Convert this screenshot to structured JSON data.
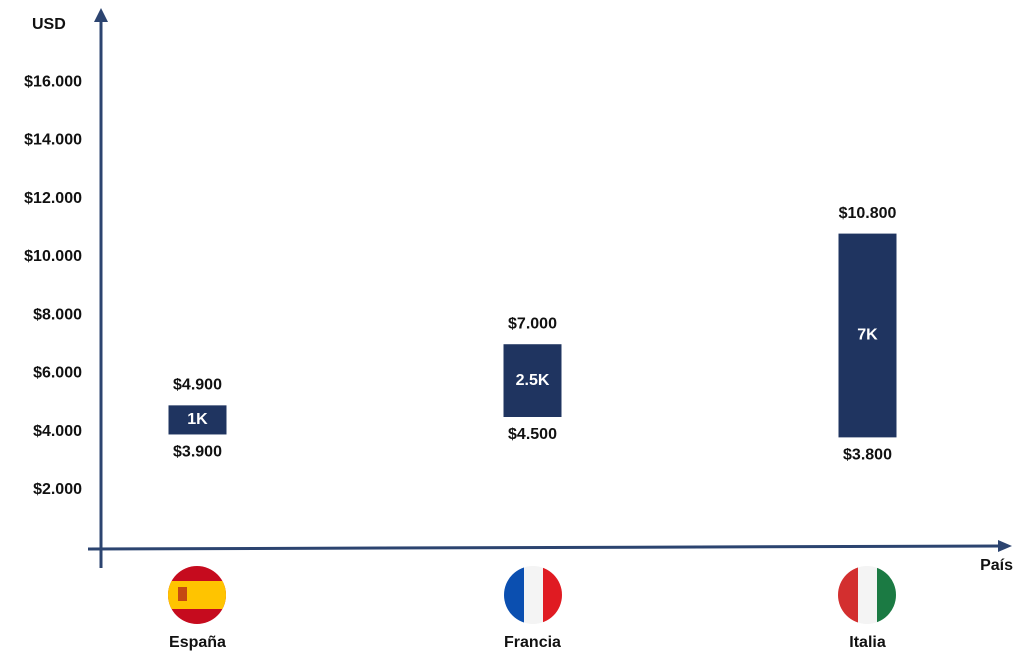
{
  "chart_data": {
    "type": "range_bar",
    "y_axis_label": "USD",
    "x_axis_label": "País",
    "categories": [
      "España",
      "Francia",
      "Italia"
    ],
    "low": {
      "values": [
        3900,
        4500,
        3800
      ],
      "value_labels": [
        "$3.900",
        "$4.500",
        "$3.800"
      ]
    },
    "high": {
      "values": [
        4900,
        7000,
        10800
      ],
      "value_labels": [
        "$4.900",
        "$7.000",
        "$10.800"
      ]
    },
    "spread_labels": [
      "1K",
      "2.5K",
      "7K"
    ],
    "color": "#1f3460",
    "ylim": [
      0,
      18000
    ],
    "yticks": [
      {
        "value": 2000,
        "label": "$2.000"
      },
      {
        "value": 4000,
        "label": "$4.000"
      },
      {
        "value": 6000,
        "label": "$6.000"
      },
      {
        "value": 8000,
        "label": "$8.000"
      },
      {
        "value": 10000,
        "label": "$10.000"
      },
      {
        "value": 12000,
        "label": "$12.000"
      },
      {
        "value": 14000,
        "label": "$14.000"
      },
      {
        "value": 16000,
        "label": "$16.000"
      }
    ],
    "grid": false
  }
}
